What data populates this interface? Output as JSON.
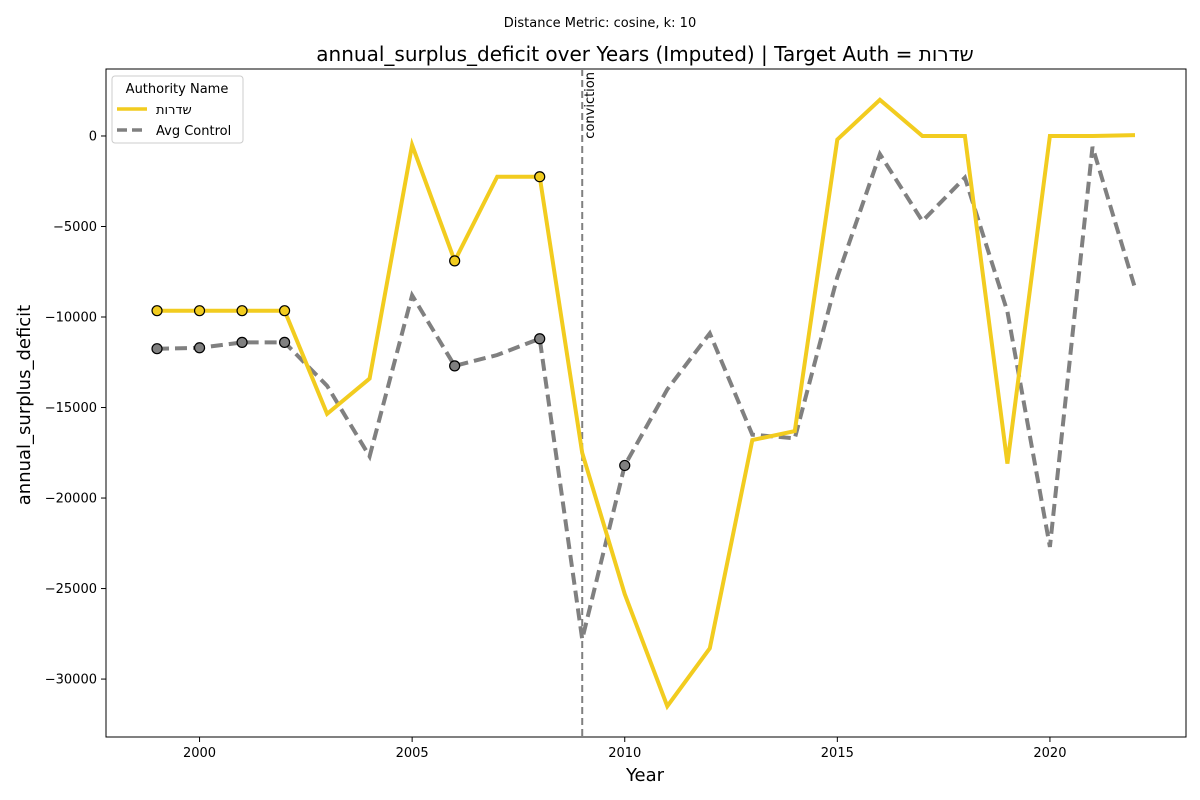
{
  "chart_data": {
    "type": "line",
    "supertitle": "Distance Metric: cosine, k: 10",
    "title": "annual_surplus_deficit over Years (Imputed) | Target Auth = שדרות",
    "xlabel": "Year",
    "ylabel": "annual_surplus_deficit",
    "xlim": [
      1997.8,
      2023.2
    ],
    "ylim": [
      -33200,
      3700
    ],
    "x_ticks": [
      2000,
      2005,
      2010,
      2015,
      2020
    ],
    "y_ticks": [
      0,
      -5000,
      -10000,
      -15000,
      -20000,
      -25000,
      -30000
    ],
    "y_tick_labels": [
      "0",
      "−5000",
      "−10000",
      "−15000",
      "−20000",
      "−25000",
      "−30000"
    ],
    "x": [
      1999,
      2000,
      2001,
      2002,
      2003,
      2004,
      2005,
      2006,
      2007,
      2008,
      2009,
      2010,
      2011,
      2012,
      2013,
      2014,
      2015,
      2016,
      2017,
      2018,
      2019,
      2020,
      2021,
      2022
    ],
    "legend": {
      "title": "Authority Name",
      "placement": "upper-left"
    },
    "series": [
      {
        "name": "שדרות",
        "color": "#f2cc1f",
        "style": "solid",
        "values": [
          -9650,
          -9650,
          -9650,
          -9650,
          -15350,
          -13400,
          -500,
          -6900,
          -2250,
          -2250,
          -17500,
          -25300,
          -31500,
          -28300,
          -16800,
          -16300,
          -200,
          2000,
          0,
          0,
          -18100,
          0,
          0,
          50
        ],
        "marker_x": [
          1999,
          2000,
          2001,
          2002,
          2006,
          2008
        ]
      },
      {
        "name": "Avg Control",
        "color": "#808080",
        "style": "dashed",
        "values": [
          -11750,
          -11700,
          -11400,
          -11400,
          -13800,
          -17700,
          -8800,
          -12700,
          -12100,
          -11200,
          -27800,
          -18200,
          -14000,
          -10900,
          -16500,
          -16700,
          -7800,
          -1000,
          -4700,
          -2300,
          -9700,
          -22700,
          -600,
          -8400
        ],
        "marker_x": [
          1999,
          2000,
          2001,
          2002,
          2006,
          2008,
          2010
        ]
      }
    ],
    "annotations": [
      {
        "type": "vline",
        "x": 2009,
        "label": "conviction",
        "color": "#808080",
        "style": "dashed"
      }
    ],
    "grid": false
  }
}
